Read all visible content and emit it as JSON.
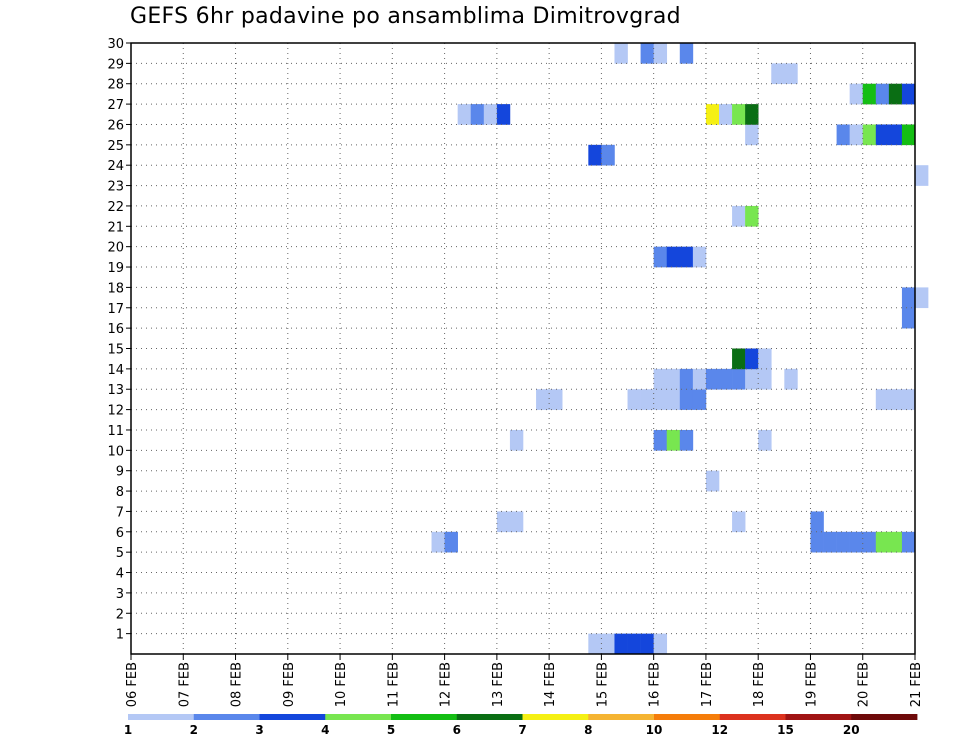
{
  "chart_data": {
    "type": "heatmap",
    "title": "GEFS 6hr padavine po ansamblima Dimitrovgrad",
    "xlabel": "",
    "ylabel": "",
    "x_ticks": [
      "06 FEB",
      "07 FEB",
      "08 FEB",
      "09 FEB",
      "10 FEB",
      "11 FEB",
      "12 FEB",
      "13 FEB",
      "14 FEB",
      "15 FEB",
      "16 FEB",
      "17 FEB",
      "18 FEB",
      "19 FEB",
      "20 FEB",
      "21 FEB"
    ],
    "y_ticks": [
      "1",
      "2",
      "3",
      "4",
      "5",
      "6",
      "7",
      "8",
      "9",
      "10",
      "11",
      "12",
      "13",
      "14",
      "15",
      "16",
      "17",
      "18",
      "19",
      "20",
      "21",
      "22",
      "23",
      "24",
      "25",
      "26",
      "27",
      "28",
      "29",
      "30"
    ],
    "xlim": [
      0,
      15
    ],
    "ylim": [
      0,
      30
    ],
    "grid": true,
    "x_unit": "days since 06 FEB",
    "y_unit": "ensemble member",
    "legend": {
      "placement": "bottom",
      "colors": [
        "#b4c8f5",
        "#5a87eb",
        "#1446dc",
        "#78e650",
        "#14be14",
        "#0a6e14",
        "#f5f014",
        "#f5b432",
        "#f57d0a",
        "#dc321e",
        "#a01414",
        "#6e0a0a"
      ],
      "labels": [
        "1",
        "2",
        "3",
        "4",
        "5",
        "6",
        "7",
        "8",
        "10",
        "12",
        "15",
        "20"
      ]
    },
    "cells": [
      {
        "member": 0,
        "day": 8.75,
        "level": 1
      },
      {
        "member": 0,
        "day": 9.0,
        "level": 1
      },
      {
        "member": 0,
        "day": 9.25,
        "level": 3
      },
      {
        "member": 0,
        "day": 9.5,
        "level": 3
      },
      {
        "member": 0,
        "day": 9.75,
        "level": 3
      },
      {
        "member": 0,
        "day": 10.0,
        "level": 1
      },
      {
        "member": 5,
        "day": 5.75,
        "level": 1
      },
      {
        "member": 5,
        "day": 6.0,
        "level": 2
      },
      {
        "member": 5,
        "day": 13.0,
        "level": 2
      },
      {
        "member": 5,
        "day": 13.25,
        "level": 2
      },
      {
        "member": 5,
        "day": 13.5,
        "level": 2
      },
      {
        "member": 5,
        "day": 13.75,
        "level": 2
      },
      {
        "member": 5,
        "day": 14.0,
        "level": 2
      },
      {
        "member": 5,
        "day": 14.25,
        "level": 4
      },
      {
        "member": 5,
        "day": 14.5,
        "level": 4
      },
      {
        "member": 5,
        "day": 14.75,
        "level": 2
      },
      {
        "member": 6,
        "day": 7.0,
        "level": 1
      },
      {
        "member": 6,
        "day": 7.25,
        "level": 1
      },
      {
        "member": 6,
        "day": 11.5,
        "level": 1
      },
      {
        "member": 6,
        "day": 13.0,
        "level": 2
      },
      {
        "member": 8,
        "day": 11.0,
        "level": 1
      },
      {
        "member": 10,
        "day": 7.25,
        "level": 1
      },
      {
        "member": 10,
        "day": 10.0,
        "level": 2
      },
      {
        "member": 10,
        "day": 10.25,
        "level": 4
      },
      {
        "member": 10,
        "day": 10.5,
        "level": 2
      },
      {
        "member": 10,
        "day": 12.0,
        "level": 1
      },
      {
        "member": 12,
        "day": 7.75,
        "level": 1
      },
      {
        "member": 12,
        "day": 8.0,
        "level": 1
      },
      {
        "member": 12,
        "day": 9.5,
        "level": 1
      },
      {
        "member": 12,
        "day": 9.75,
        "level": 1
      },
      {
        "member": 12,
        "day": 10.0,
        "level": 1
      },
      {
        "member": 12,
        "day": 10.25,
        "level": 1
      },
      {
        "member": 12,
        "day": 10.5,
        "level": 2
      },
      {
        "member": 12,
        "day": 10.75,
        "level": 2
      },
      {
        "member": 12,
        "day": 14.25,
        "level": 1
      },
      {
        "member": 12,
        "day": 14.5,
        "level": 1
      },
      {
        "member": 12,
        "day": 14.75,
        "level": 1
      },
      {
        "member": 13,
        "day": 10.0,
        "level": 1
      },
      {
        "member": 13,
        "day": 10.25,
        "level": 1
      },
      {
        "member": 13,
        "day": 10.5,
        "level": 2
      },
      {
        "member": 13,
        "day": 10.75,
        "level": 1
      },
      {
        "member": 13,
        "day": 11.0,
        "level": 2
      },
      {
        "member": 13,
        "day": 11.25,
        "level": 2
      },
      {
        "member": 13,
        "day": 11.5,
        "level": 2
      },
      {
        "member": 13,
        "day": 11.75,
        "level": 1
      },
      {
        "member": 13,
        "day": 12.0,
        "level": 1
      },
      {
        "member": 13,
        "day": 12.5,
        "level": 1
      },
      {
        "member": 14,
        "day": 11.5,
        "level": 6
      },
      {
        "member": 14,
        "day": 11.75,
        "level": 3
      },
      {
        "member": 14,
        "day": 12.0,
        "level": 1
      },
      {
        "member": 16,
        "day": 14.75,
        "level": 2
      },
      {
        "member": 17,
        "day": 14.75,
        "level": 2
      },
      {
        "member": 17,
        "day": 15.0,
        "level": 1
      },
      {
        "member": 19,
        "day": 10.0,
        "level": 2
      },
      {
        "member": 19,
        "day": 10.25,
        "level": 3
      },
      {
        "member": 19,
        "day": 10.5,
        "level": 3
      },
      {
        "member": 19,
        "day": 10.75,
        "level": 1
      },
      {
        "member": 21,
        "day": 11.5,
        "level": 1
      },
      {
        "member": 21,
        "day": 11.75,
        "level": 4
      },
      {
        "member": 23,
        "day": 15.0,
        "level": 1
      },
      {
        "member": 24,
        "day": 8.75,
        "level": 3
      },
      {
        "member": 24,
        "day": 9.0,
        "level": 2
      },
      {
        "member": 25,
        "day": 11.75,
        "level": 1
      },
      {
        "member": 25,
        "day": 13.5,
        "level": 2
      },
      {
        "member": 25,
        "day": 13.75,
        "level": 1
      },
      {
        "member": 25,
        "day": 14.0,
        "level": 4
      },
      {
        "member": 25,
        "day": 14.25,
        "level": 3
      },
      {
        "member": 25,
        "day": 14.5,
        "level": 3
      },
      {
        "member": 25,
        "day": 14.75,
        "level": 5
      },
      {
        "member": 26,
        "day": 6.25,
        "level": 1
      },
      {
        "member": 26,
        "day": 6.5,
        "level": 2
      },
      {
        "member": 26,
        "day": 6.75,
        "level": 1
      },
      {
        "member": 26,
        "day": 7.0,
        "level": 3
      },
      {
        "member": 26,
        "day": 11.0,
        "level": 7
      },
      {
        "member": 26,
        "day": 11.25,
        "level": 1
      },
      {
        "member": 26,
        "day": 11.5,
        "level": 4
      },
      {
        "member": 26,
        "day": 11.75,
        "level": 6
      },
      {
        "member": 27,
        "day": 13.75,
        "level": 1
      },
      {
        "member": 27,
        "day": 14.0,
        "level": 5
      },
      {
        "member": 27,
        "day": 14.25,
        "level": 2
      },
      {
        "member": 27,
        "day": 14.5,
        "level": 6
      },
      {
        "member": 27,
        "day": 14.75,
        "level": 3
      },
      {
        "member": 28,
        "day": 12.25,
        "level": 1
      },
      {
        "member": 28,
        "day": 12.5,
        "level": 1
      },
      {
        "member": 29,
        "day": 9.25,
        "level": 1
      },
      {
        "member": 29,
        "day": 9.75,
        "level": 2
      },
      {
        "member": 29,
        "day": 10.0,
        "level": 1
      },
      {
        "member": 29,
        "day": 10.5,
        "level": 2
      }
    ]
  }
}
